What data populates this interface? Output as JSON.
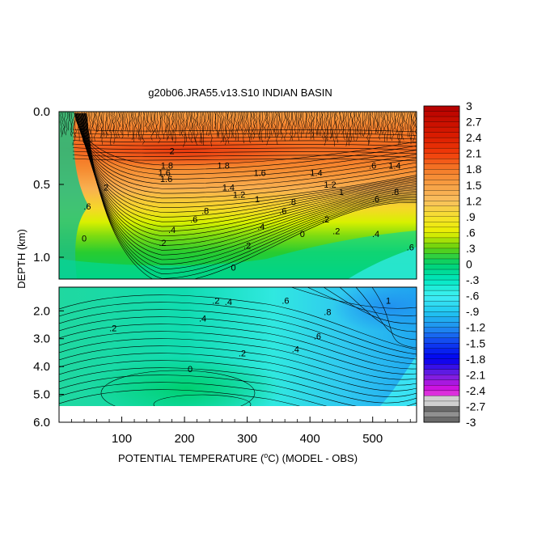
{
  "chart_data": {
    "type": "heatmap",
    "title": "g20b06.JRA55.v13.S10 INDIAN BASIN",
    "xlabel": "POTENTIAL TEMPERATURE (°C) (MODEL - OBS)",
    "xlabel_pre": "POTENTIAL TEMPERATURE (",
    "xlabel_sup": "o",
    "xlabel_post": "C) (MODEL - OBS)",
    "ylabel": "DEPTH (km)",
    "x_ticks": [
      "100",
      "200",
      "300",
      "400",
      "500"
    ],
    "x_tick_values": [
      100,
      200,
      300,
      400,
      500
    ],
    "xlim": [
      0,
      570
    ],
    "panels": [
      {
        "name": "upper",
        "ylim": [
          0.0,
          1.15
        ],
        "y_ticks": [
          "0.0",
          "0.5",
          "1.0"
        ],
        "y_tick_values": [
          0.0,
          0.5,
          1.0
        ]
      },
      {
        "name": "lower",
        "ylim": [
          1.15,
          6.0
        ],
        "y_ticks": [
          "2.0",
          "3.0",
          "4.0",
          "5.0",
          "6.0"
        ],
        "y_tick_values": [
          2.0,
          3.0,
          4.0,
          5.0,
          6.0
        ]
      }
    ],
    "contour_labels": [
      {
        "text": "2",
        "x": 180,
        "y": 0.27
      },
      {
        "text": "1.8",
        "x": 172,
        "y": 0.37
      },
      {
        "text": "1.6",
        "x": 168,
        "y": 0.42
      },
      {
        "text": "1.6",
        "x": 171,
        "y": 0.46
      },
      {
        "text": "2",
        "x": 75,
        "y": 0.52
      },
      {
        "text": "1.8",
        "x": 262,
        "y": 0.37
      },
      {
        "text": "1.6",
        "x": 320,
        "y": 0.42
      },
      {
        "text": "1.4",
        "x": 270,
        "y": 0.52
      },
      {
        "text": "1.2",
        "x": 287,
        "y": 0.57
      },
      {
        "text": "1",
        "x": 316,
        "y": 0.6
      },
      {
        "text": "1.4",
        "x": 410,
        "y": 0.42
      },
      {
        "text": "1.2",
        "x": 432,
        "y": 0.5
      },
      {
        "text": "1",
        "x": 450,
        "y": 0.55
      },
      {
        "text": ".6",
        "x": 500,
        "y": 0.37
      },
      {
        "text": "1.4",
        "x": 535,
        "y": 0.37
      },
      {
        "text": ".8",
        "x": 536,
        "y": 0.55
      },
      {
        "text": ".6",
        "x": 505,
        "y": 0.6
      },
      {
        "text": ".8",
        "x": 372,
        "y": 0.62
      },
      {
        "text": ".6",
        "x": 357,
        "y": 0.68
      },
      {
        "text": ".8",
        "x": 233,
        "y": 0.68
      },
      {
        "text": ".6",
        "x": 215,
        "y": 0.74
      },
      {
        "text": ".4",
        "x": 180,
        "y": 0.81
      },
      {
        "text": ".2",
        "x": 165,
        "y": 0.9
      },
      {
        "text": "0",
        "x": 40,
        "y": 0.87
      },
      {
        "text": ".6",
        "x": 45,
        "y": 0.65
      },
      {
        "text": ".4",
        "x": 322,
        "y": 0.79
      },
      {
        "text": ".2",
        "x": 300,
        "y": 0.92
      },
      {
        "text": "0",
        "x": 278,
        "y": 1.07
      },
      {
        "text": ".2",
        "x": 425,
        "y": 0.74
      },
      {
        "text": "0",
        "x": 388,
        "y": 0.84
      },
      {
        "text": ".2",
        "x": 442,
        "y": 0.82
      },
      {
        "text": ".4",
        "x": 505,
        "y": 0.84
      },
      {
        "text": ".6",
        "x": 560,
        "y": 0.93
      },
      {
        "text": ".2",
        "x": 250,
        "y": 1.63
      },
      {
        "text": ".4",
        "x": 270,
        "y": 1.68
      },
      {
        "text": ".4",
        "x": 229,
        "y": 2.27
      },
      {
        "text": ".2",
        "x": 86,
        "y": 2.61
      },
      {
        "text": ".6",
        "x": 361,
        "y": 1.63
      },
      {
        "text": ".8",
        "x": 428,
        "y": 2.03
      },
      {
        "text": "1",
        "x": 525,
        "y": 1.63
      },
      {
        "text": ".6",
        "x": 412,
        "y": 2.9
      },
      {
        "text": ".4",
        "x": 377,
        "y": 3.37
      },
      {
        "text": ".2",
        "x": 292,
        "y": 3.52
      },
      {
        "text": "0",
        "x": 209,
        "y": 4.08
      }
    ],
    "colorbar": {
      "labels": [
        "3",
        "2.7",
        "2.4",
        "2.1",
        "1.8",
        "1.5",
        "1.2",
        ".9",
        ".6",
        ".3",
        "0",
        "-.3",
        "-.6",
        "-.9",
        "-1.2",
        "-1.5",
        "-1.8",
        "-2.1",
        "-2.4",
        "-2.7",
        "-3"
      ],
      "min": -3.0,
      "max": 3.0,
      "step": 0.1,
      "colors": {
        "3.0": "#b40000",
        "2.4": "#dc1e00",
        "2.1": "#f03c0a",
        "1.8": "#f57a28",
        "1.5": "#f7a044",
        "1.2": "#f9c060",
        "0.9": "#f5e02c",
        "0.6": "#e8f000",
        "0.3": "#60d010",
        "0.0": "#00d070",
        "-0.3": "#00e8c0",
        "-0.6": "#40f0f4",
        "-0.9": "#20c8f0",
        "-1.2": "#2090f0",
        "-1.5": "#1040f0",
        "-1.8": "#0000f0",
        "-2.1": "#7020e0",
        "-2.4": "#e010e0",
        "-2.7": "#c8c8c8",
        "-3.0": "#707070"
      }
    }
  }
}
